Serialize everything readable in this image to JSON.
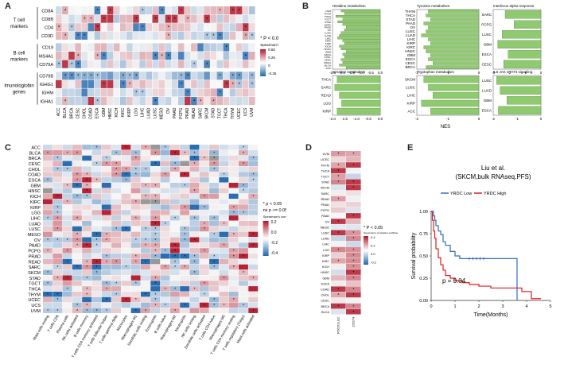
{
  "colors": {
    "neg": "#2166ac",
    "pos": "#b2182b",
    "mid": "#f7f7f7",
    "bar": "#8fc970",
    "bar_edge": "#4a7f2e",
    "low_line": "#2f6fb4",
    "high_line": "#e31a1c",
    "grey": "#999999"
  },
  "panel_a": {
    "label": "A",
    "group_labels": [
      "T cell\nmarkers",
      "B cell\nmarkers",
      "Imunologlobin\ngenes"
    ],
    "genes": [
      "CD8A",
      "CD8B",
      "CD4",
      "CD3D",
      "CD19",
      "MS4A1",
      "CD79A",
      "CD79B",
      "IGHG1",
      "IGHM",
      "IGHA1"
    ],
    "cancers": [
      "ACC",
      "BLCA",
      "BRCA",
      "CESC",
      "CHOL",
      "COAD",
      "ESCA",
      "GBM",
      "HNSC",
      "KICH",
      "KIRC",
      "KIRP",
      "LGG",
      "LIHC",
      "LUAD",
      "LUSC",
      "MESO",
      "OV",
      "PAAD",
      "PCPG",
      "PRAD",
      "READ",
      "SARC",
      "SKCM",
      "STAD",
      "TGCT",
      "THCA",
      "THYM",
      "UCEC",
      "UCS",
      "UVM"
    ],
    "legend_title": "* P < 0.05",
    "legend_sub": "Spearman's correlation coefficient",
    "legend_ticks": [
      "0.50",
      "0.25",
      "0",
      "-0.25"
    ]
  },
  "panel_b": {
    "label": "B",
    "xlabel": "NES",
    "subplots": [
      {
        "title": "Histidine metabolism",
        "cats": [
          "UVM",
          "THYM",
          "THCA",
          "TGCT",
          "STAD",
          "SARC",
          "PAAD",
          "OV",
          "LUSC",
          "LUAD",
          "LIHC",
          "KIRC",
          "KIRP",
          "KICH",
          "HNSC",
          "GBM",
          "ESCA",
          "CHOL",
          "CESC",
          "BRCA",
          "BLCA",
          "ACC"
        ],
        "values": [
          -2.3,
          -2.1,
          -2.6,
          -2.2,
          -2.5,
          -2.2,
          -2.0,
          -2.1,
          -2.3,
          -2.4,
          -2.5,
          -2.2,
          -2.1,
          -2.4,
          -2.3,
          -2.0,
          -2.2,
          -2.1,
          -2.3,
          -2.2,
          -2.4,
          -2.0
        ],
        "ticks": [
          "-2.5",
          "-2.0",
          "-1.5",
          "-1.0",
          "-0.5",
          "0.0"
        ],
        "xmin": -2.8
      },
      {
        "title": "Tyrosine metabolism",
        "cats": [
          "THYM",
          "THCA",
          "STAD",
          "PAAD",
          "OV",
          "LUSC",
          "LUAD",
          "LIHC",
          "KIRP",
          "KIRC",
          "HNSC",
          "GBM",
          "ESCA",
          "CESC",
          "BRCA"
        ],
        "values": [
          -2.2,
          -2.3,
          -2.1,
          -2.4,
          -2.2,
          -2.3,
          -2.5,
          -2.2,
          -2.1,
          -2.4,
          -2.3,
          -2.1,
          -2.2,
          -2.0,
          -2.3
        ],
        "ticks": [
          "-2",
          "-1",
          "0"
        ],
        "xmin": -2.7
      },
      {
        "title": "Interferon alpha response",
        "cats": [
          "SARC",
          "PCPG",
          "LUSC",
          "GBM",
          "ESCA",
          "CESC"
        ],
        "values": [
          -2.4,
          -1.8,
          -2.6,
          -2.9,
          -2.2,
          -2.5
        ],
        "ticks": [
          "-3",
          "-2",
          "-1",
          "0"
        ],
        "xmin": -3.2
      },
      {
        "title": "Creatine metabolism",
        "cats": [
          "THCA",
          "SARC",
          "READ",
          "LGG",
          "KIRP"
        ],
        "values": [
          -1.9,
          -2.0,
          -1.8,
          -1.7,
          -1.9
        ],
        "ticks": [
          "-2.0",
          "-1.5",
          "-1.0",
          "-0.5",
          "0.0"
        ],
        "xmin": -2.1
      },
      {
        "title": "Tryptophan metabolism",
        "cats": [
          "SKCM",
          "LUSC",
          "LIHC",
          "KIRP",
          "ACC"
        ],
        "values": [
          -2.4,
          -2.2,
          -2.0,
          -2.5,
          -2.1
        ],
        "ticks": [
          "-2",
          "-1",
          "0"
        ],
        "xmin": -2.7
      },
      {
        "title": "IL6 JAK STAT3 signaling",
        "cats": [
          "LUSC",
          "LUAD",
          "GBM",
          "ESCA"
        ],
        "values": [
          -2.6,
          -2.4,
          -2.0,
          -2.5
        ],
        "ticks": [
          "-2",
          "-1",
          "0"
        ],
        "xmin": -2.8
      }
    ]
  },
  "panel_c": {
    "label": "C",
    "cancers": [
      "ACC",
      "BLCA",
      "BRCA",
      "CESC",
      "CHOL",
      "COAD",
      "ESCA",
      "GBM",
      "HNSC",
      "KICH",
      "KIRC",
      "KIRP",
      "LGG",
      "LIHC",
      "LUAD",
      "LUSC",
      "MESO",
      "OV",
      "PAAD",
      "PCPG",
      "PRAD",
      "READ",
      "SARC",
      "SKCM",
      "STAD",
      "TGCT",
      "THCA",
      "THYM",
      "UCEC",
      "UCS",
      "UVM"
    ],
    "cells": [
      "Mast cells resting",
      "T cells CD8",
      "Plasma cells",
      "NK cells activated",
      "B cells memory",
      "T cells CD4 memory activated",
      "T cells follicular helper",
      "T cells gamma delta",
      "Monocytes",
      "Macrophages M1",
      "Dendritic cells resting",
      "Eosinophils",
      "B cells naive",
      "Macrophages M2",
      "Neutrophils",
      "NK cells resting",
      "Dendritic cells activated",
      "T cells CD4 naive",
      "Macrophages M0",
      "T cells CD4 memory resting",
      "T cells regulatory (Tregs)",
      "Mast cells activated"
    ],
    "legend_p": "* p < 0.05",
    "legend_ns": "ns p >= 0.05",
    "legend_sub": "Spearman's correlation coefficient",
    "legend_ticks": [
      "0.2",
      "0.0",
      "-0.2",
      "-0.4"
    ]
  },
  "panel_d": {
    "label": "D",
    "cancers": [
      "UVM",
      "UCEC",
      "THYM",
      "THCA",
      "TGCT",
      "STAD",
      "SKCM",
      "SARC",
      "READ",
      "PRAD",
      "PCPG",
      "PAAD",
      "OV",
      "MESO",
      "LUSC",
      "LUAD",
      "LIHC",
      "LGG",
      "KIRP",
      "KIRC",
      "KICH",
      "HNSC",
      "GBM",
      "ESCA",
      "COAD",
      "CHOL",
      "CESC",
      "BRCA",
      "BLCA"
    ],
    "cols": [
      "PDCD1LG2",
      "CD274"
    ],
    "legend_title": "* P < 0.05",
    "legend_sub": "Spearman's correlation coefficient",
    "legend_ticks": [
      "0.4",
      "0.2",
      "0.0",
      "-0.2"
    ]
  },
  "panel_e": {
    "label": "E",
    "title": "Liu et al.",
    "subtitle": "(SKCM,bulk RNAseq,PFS)",
    "legend": [
      "YRDC Low",
      "YRDC High"
    ],
    "ylabel": "Survival probability",
    "xlabel": "Time(Months)",
    "pvalue": "p = 0.04",
    "yticks": [
      "0.00",
      "0.25",
      "0.50",
      "0.75",
      "1.00"
    ],
    "xticks": [
      "0",
      "1",
      "2",
      "3",
      "4",
      "5"
    ],
    "chart_data": {
      "type": "line",
      "series": [
        {
          "name": "YRDC Low",
          "x": [
            0,
            0.1,
            0.15,
            0.2,
            0.3,
            0.4,
            0.5,
            0.6,
            0.8,
            1.0,
            1.2,
            1.6,
            2.0,
            3.6,
            3.6
          ],
          "y": [
            1,
            0.95,
            0.9,
            0.84,
            0.78,
            0.74,
            0.66,
            0.62,
            0.55,
            0.5,
            0.47,
            0.47,
            0.47,
            0.47,
            0.0
          ]
        },
        {
          "name": "YRDC High",
          "x": [
            0,
            0.05,
            0.1,
            0.15,
            0.2,
            0.3,
            0.4,
            0.5,
            0.6,
            0.8,
            1.0,
            1.3,
            1.6,
            2.0,
            2.5,
            3.0,
            3.5,
            3.8,
            4.2,
            4.6
          ],
          "y": [
            1,
            0.9,
            0.78,
            0.7,
            0.58,
            0.48,
            0.4,
            0.34,
            0.28,
            0.25,
            0.22,
            0.2,
            0.18,
            0.16,
            0.14,
            0.14,
            0.14,
            0.1,
            0.02,
            0.02
          ]
        }
      ],
      "xlim": [
        0,
        5
      ],
      "ylim": [
        0,
        1
      ]
    }
  }
}
